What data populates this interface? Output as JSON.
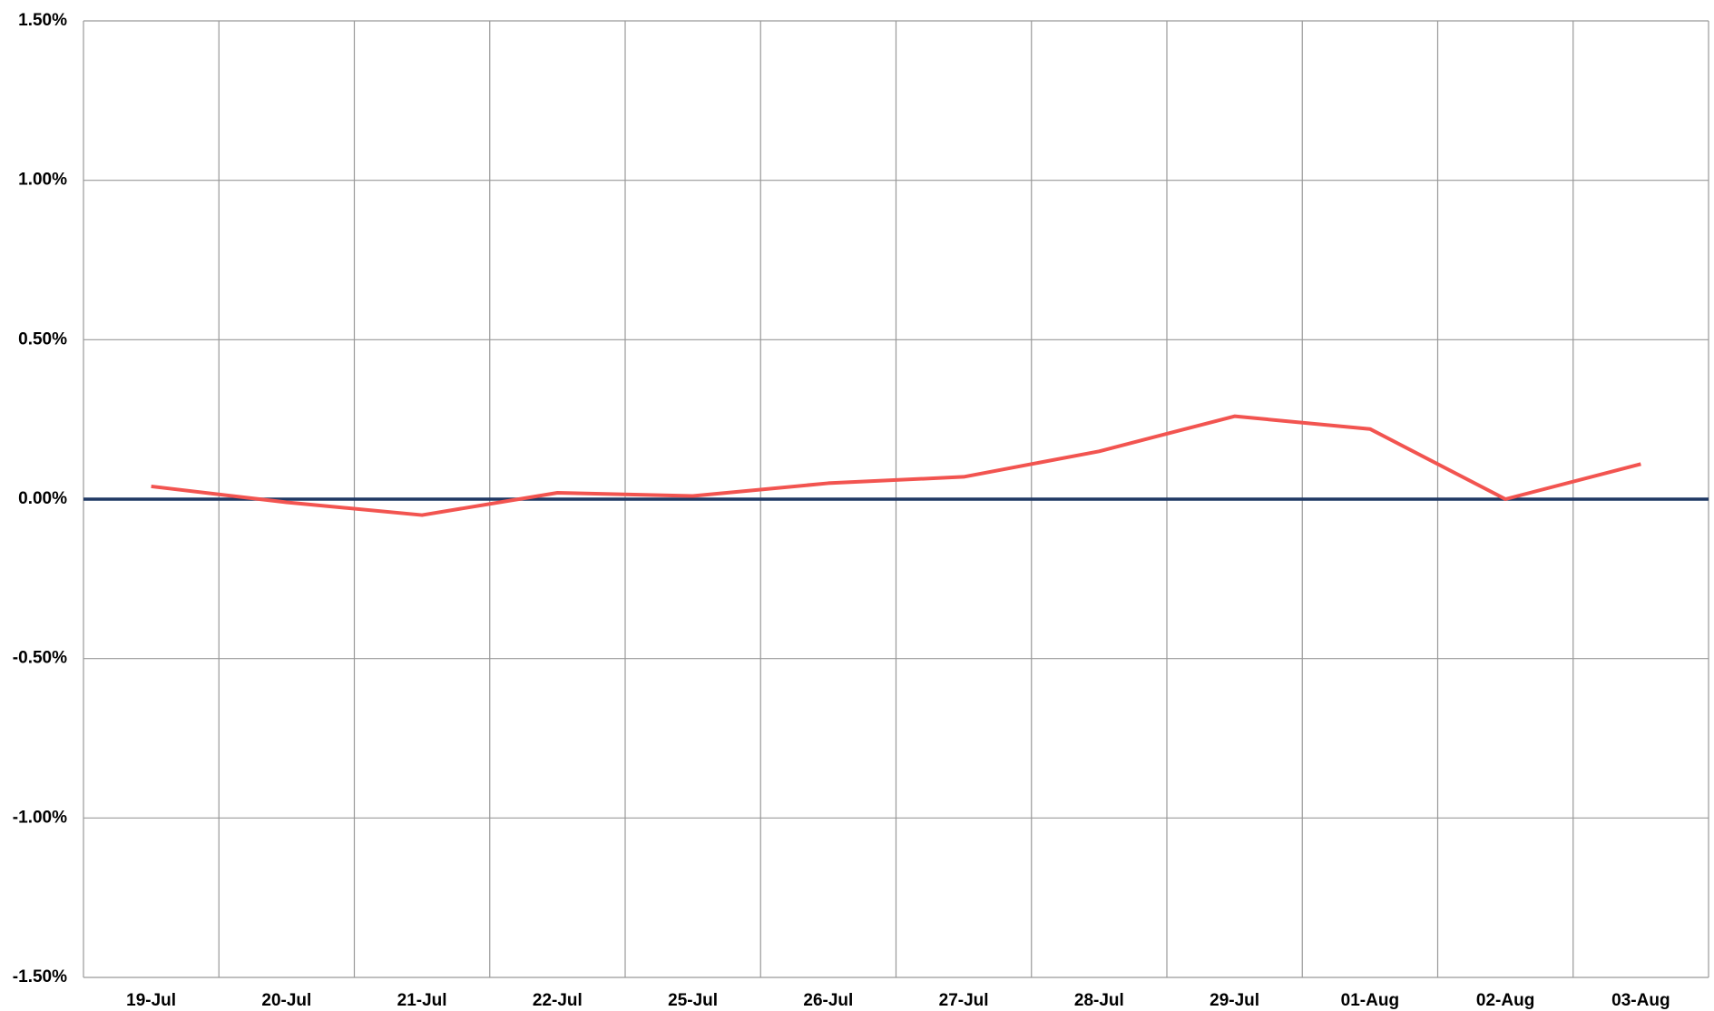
{
  "chart_data": {
    "type": "line",
    "categories": [
      "19-Jul",
      "20-Jul",
      "21-Jul",
      "22-Jul",
      "25-Jul",
      "26-Jul",
      "27-Jul",
      "28-Jul",
      "29-Jul",
      "01-Aug",
      "02-Aug",
      "03-Aug"
    ],
    "series": [
      {
        "color": "#f25450",
        "values": [
          0.04,
          -0.01,
          -0.05,
          0.02,
          0.01,
          0.05,
          0.07,
          0.15,
          0.26,
          0.22,
          0.0,
          0.11
        ]
      }
    ],
    "ylim": [
      -1.5,
      1.5
    ],
    "yticks": [
      {
        "value": -1.5,
        "label": "-1.50%"
      },
      {
        "value": -1.0,
        "label": "-1.00%"
      },
      {
        "value": -0.5,
        "label": "-0.50%"
      },
      {
        "value": 0,
        "label": "0.00%"
      },
      {
        "value": 0.5,
        "label": "0.50%"
      },
      {
        "value": 1.0,
        "label": "1.00%"
      },
      {
        "value": 1.5,
        "label": "1.50%"
      }
    ],
    "grid": true,
    "zero_line_color": "#1f3864"
  }
}
